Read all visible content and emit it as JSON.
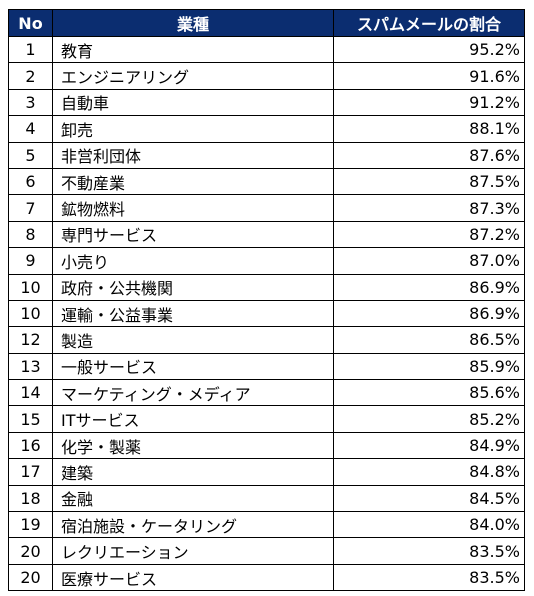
{
  "table": {
    "headers": {
      "no": "No",
      "industry": "業種",
      "ratio": "スパムメールの割合"
    },
    "rows": [
      {
        "no": "1",
        "industry": "教育",
        "ratio": "95.2%"
      },
      {
        "no": "2",
        "industry": "エンジニアリング",
        "ratio": "91.6%"
      },
      {
        "no": "3",
        "industry": "自動車",
        "ratio": "91.2%"
      },
      {
        "no": "4",
        "industry": "卸売",
        "ratio": "88.1%"
      },
      {
        "no": "5",
        "industry": "非営利団体",
        "ratio": "87.6%"
      },
      {
        "no": "6",
        "industry": "不動産業",
        "ratio": "87.5%"
      },
      {
        "no": "7",
        "industry": "鉱物燃料",
        "ratio": "87.3%"
      },
      {
        "no": "8",
        "industry": "専門サービス",
        "ratio": "87.2%"
      },
      {
        "no": "9",
        "industry": "小売り",
        "ratio": "87.0%"
      },
      {
        "no": "10",
        "industry": "政府・公共機関",
        "ratio": "86.9%"
      },
      {
        "no": "10",
        "industry": "運輸・公益事業",
        "ratio": "86.9%"
      },
      {
        "no": "12",
        "industry": "製造",
        "ratio": "86.5%"
      },
      {
        "no": "13",
        "industry": "一般サービス",
        "ratio": "85.9%"
      },
      {
        "no": "14",
        "industry": "マーケティング・メディア",
        "ratio": "85.6%"
      },
      {
        "no": "15",
        "industry": "ITサービス",
        "ratio": "85.2%"
      },
      {
        "no": "16",
        "industry": "化学・製薬",
        "ratio": "84.9%"
      },
      {
        "no": "17",
        "industry": "建築",
        "ratio": "84.8%"
      },
      {
        "no": "18",
        "industry": "金融",
        "ratio": "84.5%"
      },
      {
        "no": "19",
        "industry": "宿泊施設・ケータリング",
        "ratio": "84.0%"
      },
      {
        "no": "20",
        "industry": "レクリエーション",
        "ratio": "83.5%"
      },
      {
        "no": "20",
        "industry": "医療サービス",
        "ratio": "83.5%"
      }
    ]
  },
  "colors": {
    "header_background": "#0b2d70",
    "header_text": "#ffffff",
    "border": "#000000"
  }
}
